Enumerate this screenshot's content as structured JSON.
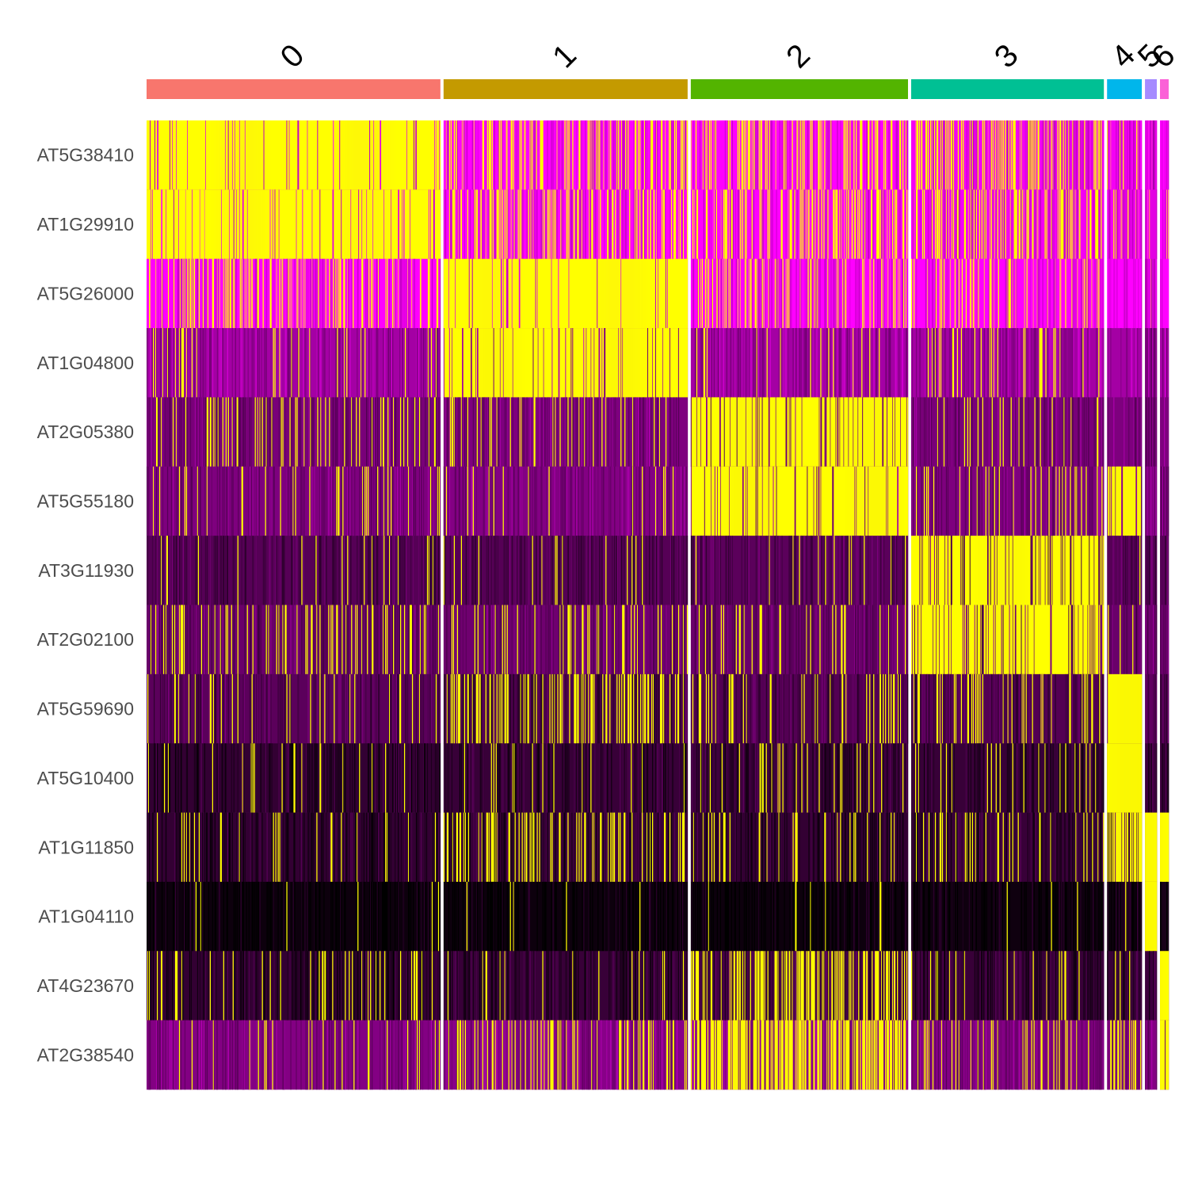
{
  "chart_data": {
    "type": "heatmap",
    "title": "",
    "xlabel": "",
    "ylabel": "",
    "grid": false,
    "legend": "none",
    "clusters": [
      {
        "name": "0",
        "color": "#F8766D",
        "cells": 372
      },
      {
        "name": "1",
        "color": "#C49A00",
        "cells": 309
      },
      {
        "name": "2",
        "color": "#53B400",
        "cells": 275
      },
      {
        "name": "3",
        "color": "#00C094",
        "cells": 244
      },
      {
        "name": "4",
        "color": "#00B6EB",
        "cells": 44
      },
      {
        "name": "5",
        "color": "#A58AFF",
        "cells": 15
      },
      {
        "name": "6",
        "color": "#FB61D7",
        "cells": 11
      }
    ],
    "genes": [
      "AT5G38410",
      "AT1G29910",
      "AT5G26000",
      "AT1G04800",
      "AT2G05380",
      "AT5G55180",
      "AT3G11930",
      "AT2G02100",
      "AT5G59690",
      "AT5G10400",
      "AT1G11850",
      "AT1G04110",
      "AT4G23670",
      "AT2G38540"
    ],
    "color_scale": {
      "low": "#000000",
      "mid": "#8B008B",
      "high": "#FF00FF",
      "max": "#FFFF00"
    },
    "mean_expression": [
      [
        0.9,
        0.22,
        0.25,
        0.28,
        0.08,
        0.0,
        0.0
      ],
      [
        0.88,
        0.2,
        0.22,
        0.25,
        0.08,
        0.0,
        0.0
      ],
      [
        0.12,
        0.92,
        0.12,
        0.13,
        0.05,
        0.0,
        0.0
      ],
      [
        0.08,
        0.85,
        0.06,
        0.1,
        0.05,
        0.0,
        0.0
      ],
      [
        0.12,
        0.08,
        0.82,
        0.08,
        0.05,
        0.0,
        0.0
      ],
      [
        0.12,
        0.05,
        0.88,
        0.1,
        0.7,
        0.0,
        0.0
      ],
      [
        0.05,
        0.04,
        0.06,
        0.8,
        0.05,
        0.0,
        0.0
      ],
      [
        0.15,
        0.12,
        0.1,
        0.82,
        0.05,
        0.0,
        0.0
      ],
      [
        0.06,
        0.25,
        0.15,
        0.18,
        0.98,
        0.0,
        0.0
      ],
      [
        0.05,
        0.06,
        0.1,
        0.08,
        0.98,
        0.0,
        0.0
      ],
      [
        0.05,
        0.22,
        0.1,
        0.1,
        0.7,
        0.98,
        0.95
      ],
      [
        0.01,
        0.02,
        0.01,
        0.01,
        0.02,
        0.98,
        0.05
      ],
      [
        0.1,
        0.08,
        0.35,
        0.06,
        0.05,
        0.0,
        0.98
      ],
      [
        0.08,
        0.18,
        0.55,
        0.1,
        0.3,
        0.0,
        0.98
      ]
    ],
    "baseline_level": [
      [
        0.8,
        0.88,
        0.88,
        0.85,
        0.85,
        0.8,
        0.88
      ],
      [
        0.8,
        0.88,
        0.88,
        0.85,
        0.85,
        0.8,
        0.88
      ],
      [
        0.88,
        0.8,
        0.88,
        0.88,
        0.88,
        0.8,
        0.88
      ],
      [
        0.62,
        0.62,
        0.62,
        0.62,
        0.62,
        0.55,
        0.62
      ],
      [
        0.48,
        0.5,
        0.5,
        0.48,
        0.5,
        0.45,
        0.5
      ],
      [
        0.5,
        0.52,
        0.55,
        0.5,
        0.5,
        0.5,
        0.5
      ],
      [
        0.34,
        0.34,
        0.36,
        0.4,
        0.34,
        0.36,
        0.34
      ],
      [
        0.42,
        0.44,
        0.42,
        0.45,
        0.42,
        0.44,
        0.42
      ],
      [
        0.36,
        0.3,
        0.33,
        0.33,
        0.4,
        0.38,
        0.36
      ],
      [
        0.2,
        0.22,
        0.24,
        0.22,
        0.4,
        0.24,
        0.24
      ],
      [
        0.2,
        0.22,
        0.2,
        0.22,
        0.3,
        0.4,
        0.4
      ],
      [
        0.05,
        0.05,
        0.05,
        0.06,
        0.1,
        0.4,
        0.1
      ],
      [
        0.2,
        0.22,
        0.28,
        0.22,
        0.22,
        0.24,
        0.4
      ],
      [
        0.52,
        0.54,
        0.55,
        0.52,
        0.52,
        0.52,
        0.52
      ]
    ]
  }
}
